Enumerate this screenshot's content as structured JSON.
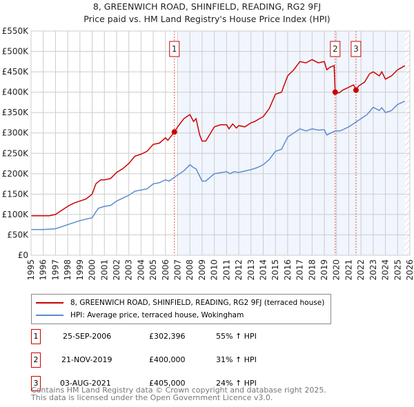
{
  "chart_data": {
    "type": "line",
    "title": "8, GREENWICH ROAD, SHINFIELD, READING, RG2 9FJ",
    "subtitle": "Price paid vs. HM Land Registry's House Price Index (HPI)",
    "xlim": [
      1995,
      2026
    ],
    "ylim": [
      0,
      550000
    ],
    "x_ticks": [
      "1995",
      "1996",
      "1997",
      "1998",
      "1999",
      "2000",
      "2001",
      "2002",
      "2003",
      "2004",
      "2005",
      "2006",
      "2007",
      "2008",
      "2009",
      "2010",
      "2011",
      "2012",
      "2013",
      "2014",
      "2015",
      "2016",
      "2017",
      "2018",
      "2019",
      "2020",
      "2021",
      "2022",
      "2023",
      "2024",
      "2025",
      "2026"
    ],
    "y_ticks": [
      "£0",
      "£50K",
      "£100K",
      "£150K",
      "£200K",
      "£250K",
      "£300K",
      "£350K",
      "£400K",
      "£450K",
      "£500K",
      "£550K"
    ],
    "grid": true,
    "shaded_from": 2007.1,
    "hatched_from": 2025.6,
    "series": [
      {
        "name": "8, GREENWICH ROAD, SHINFIELD, READING, RG2 9FJ (terraced house)",
        "color": "#cc0000",
        "x": [
          1995,
          1996,
          1996.5,
          1997,
          1997.5,
          1998,
          1998.5,
          1999,
          1999.5,
          2000,
          2000.3,
          2000.7,
          2001,
          2001.5,
          2002,
          2002.5,
          2003,
          2003.5,
          2004,
          2004.5,
          2005,
          2005.5,
          2006,
          2006.2,
          2006.73,
          2007,
          2007.5,
          2008,
          2008.3,
          2008.5,
          2008.8,
          2009,
          2009.3,
          2009.7,
          2010,
          2010.5,
          2011,
          2011.2,
          2011.5,
          2011.8,
          2012,
          2012.5,
          2013,
          2013.3,
          2013.7,
          2014,
          2014.5,
          2015,
          2015.5,
          2016,
          2016.5,
          2017,
          2017.5,
          2018,
          2018.5,
          2019,
          2019.2,
          2019.5,
          2019.8,
          2019.89,
          2020.2,
          2020.5,
          2021,
          2021.4,
          2021.59,
          2021.8,
          2022.3,
          2022.7,
          2023,
          2023.5,
          2023.7,
          2024,
          2024.5,
          2025,
          2025.3,
          2025.6
        ],
        "y": [
          97,
          97,
          97,
          100,
          110,
          120,
          128,
          133,
          138,
          150,
          175,
          185,
          185,
          188,
          203,
          212,
          225,
          243,
          248,
          255,
          272,
          275,
          288,
          282,
          302,
          315,
          335,
          345,
          328,
          335,
          295,
          280,
          280,
          300,
          315,
          320,
          320,
          310,
          322,
          312,
          318,
          315,
          325,
          328,
          335,
          340,
          360,
          395,
          400,
          440,
          455,
          475,
          472,
          480,
          472,
          475,
          455,
          462,
          465,
          400,
          398,
          405,
          412,
          418,
          405,
          415,
          425,
          445,
          450,
          440,
          450,
          432,
          440,
          455,
          460,
          465
        ]
      },
      {
        "name": "HPI: Average price, terraced house, Wokingham",
        "color": "#5b8bd0",
        "x": [
          1995,
          1996,
          1997,
          1998,
          1999,
          2000,
          2000.5,
          2001,
          2001.5,
          2002,
          2003,
          2003.5,
          2004,
          2004.5,
          2005,
          2005.5,
          2006,
          2006.3,
          2007,
          2007.5,
          2008,
          2008.3,
          2008.5,
          2009,
          2009.3,
          2010,
          2011,
          2011.3,
          2011.6,
          2012,
          2013,
          2013.5,
          2014,
          2014.5,
          2015,
          2015.5,
          2016,
          2016.5,
          2017,
          2017.5,
          2018,
          2018.5,
          2019,
          2019.2,
          2019.89,
          2020.3,
          2021,
          2021.5,
          2022,
          2022.5,
          2023,
          2023.5,
          2023.7,
          2024,
          2024.5,
          2025,
          2025.6
        ],
        "y": [
          63,
          63,
          65,
          75,
          85,
          92,
          115,
          120,
          122,
          133,
          147,
          157,
          160,
          163,
          175,
          178,
          185,
          182,
          197,
          207,
          222,
          215,
          212,
          182,
          182,
          200,
          205,
          200,
          205,
          203,
          210,
          215,
          222,
          235,
          255,
          260,
          290,
          300,
          310,
          305,
          310,
          307,
          308,
          295,
          305,
          305,
          315,
          325,
          335,
          345,
          363,
          355,
          362,
          350,
          355,
          370,
          378
        ]
      }
    ],
    "y_unit": "thousands GBP",
    "sales": [
      {
        "label": "1",
        "x": 2006.73,
        "y": 302.396,
        "date": "25-SEP-2006",
        "price": "£302,396",
        "hpi": "55% ↑ HPI"
      },
      {
        "label": "2",
        "x": 2019.89,
        "y": 400,
        "date": "21-NOV-2019",
        "price": "£400,000",
        "hpi": "31% ↑ HPI"
      },
      {
        "label": "3",
        "x": 2021.59,
        "y": 405,
        "date": "03-AUG-2021",
        "price": "£405,000",
        "hpi": "24% ↑ HPI"
      }
    ]
  },
  "legend": {
    "red": "8, GREENWICH ROAD, SHINFIELD, READING, RG2 9FJ (terraced house)",
    "blue": "HPI: Average price, terraced house, Wokingham"
  },
  "footer": {
    "line1": "Contains HM Land Registry data © Crown copyright and database right 2025.",
    "line2": "This data is licensed under the Open Government Licence v3.0."
  }
}
